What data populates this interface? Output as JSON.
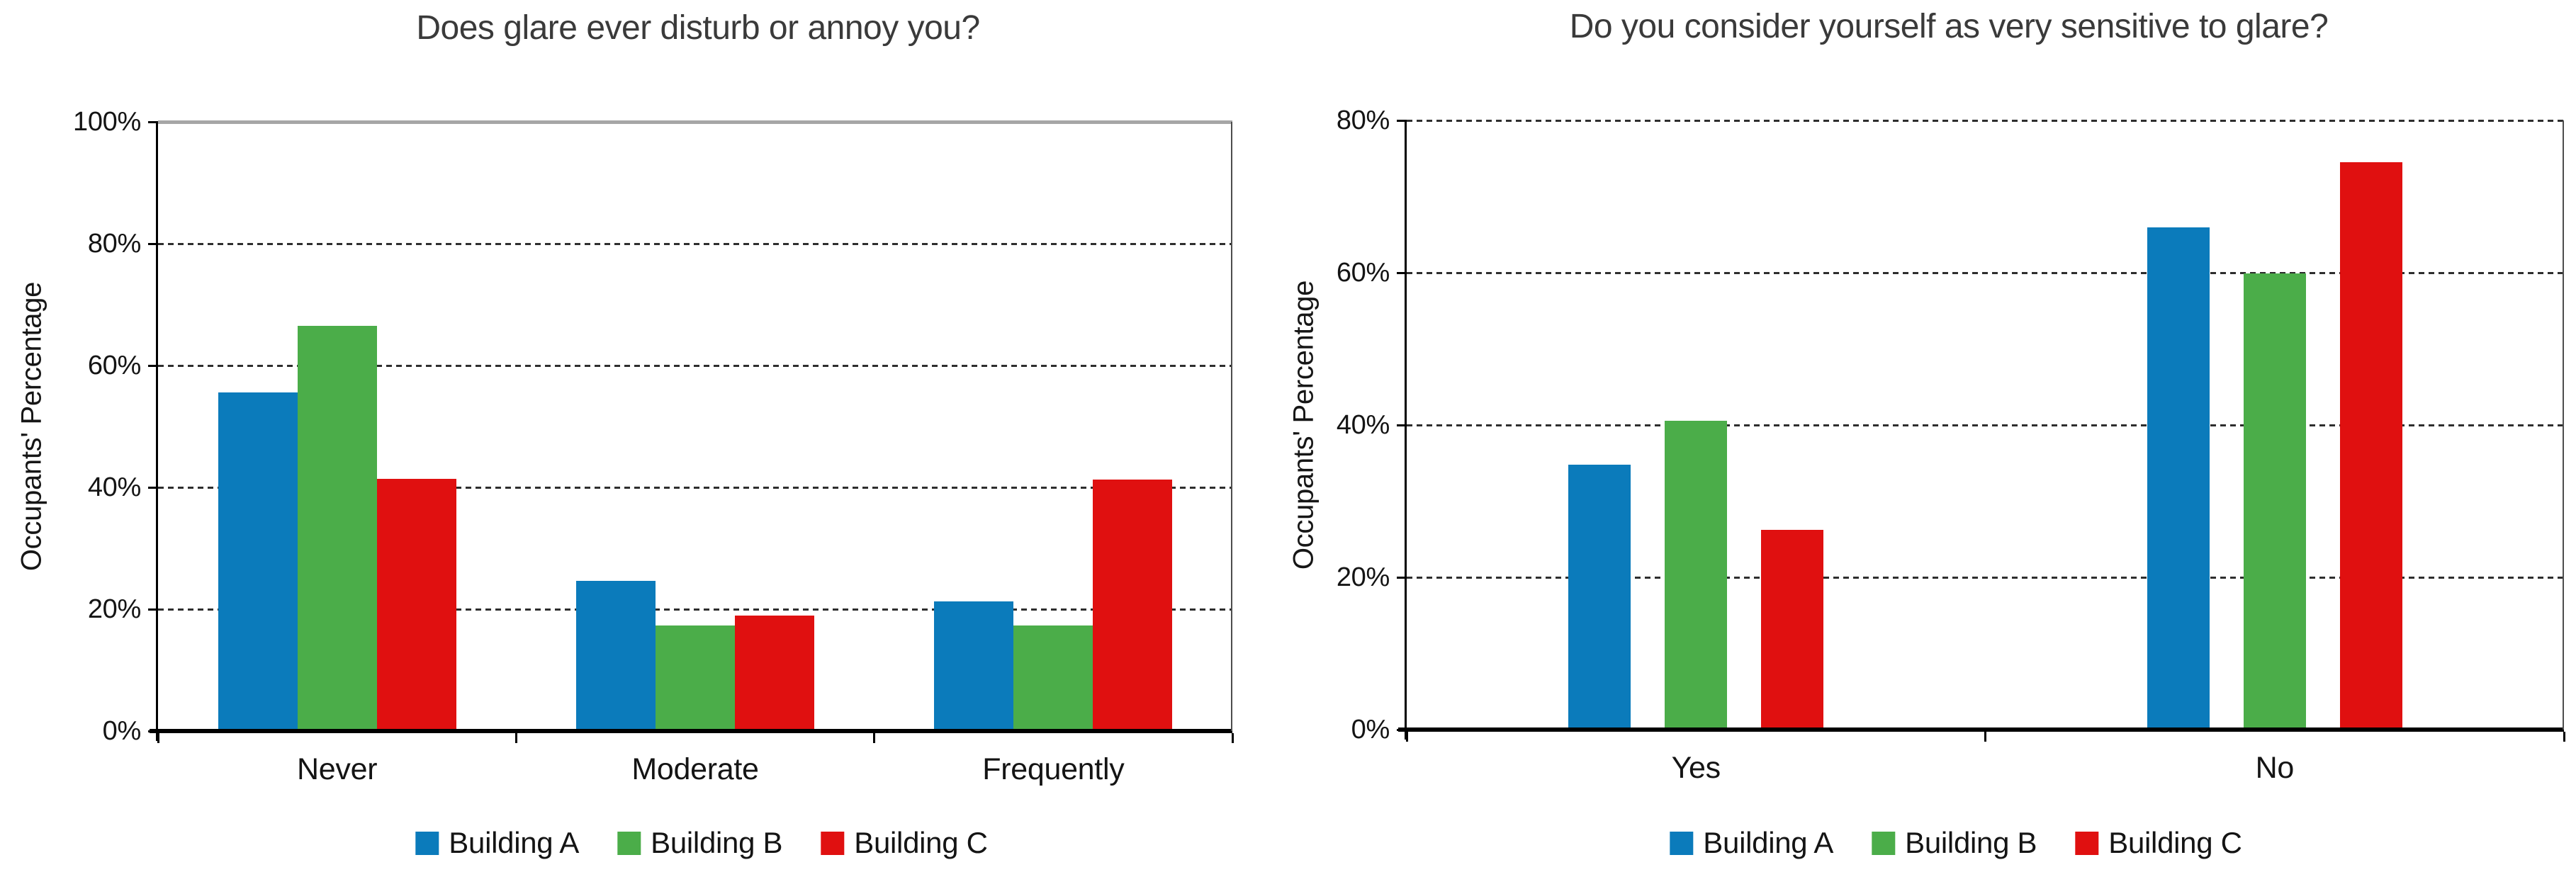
{
  "chart_data": [
    {
      "type": "bar",
      "title": "Does glare ever disturb or annoy you?",
      "xlabel": "",
      "ylabel": "Occupants' Percentage",
      "categories": [
        "Never",
        "Moderate",
        "Frequently"
      ],
      "series": [
        {
          "name": "Building A",
          "color": "#0b7bbb",
          "values": [
            55.2,
            24.3,
            20.9
          ]
        },
        {
          "name": "Building B",
          "color": "#4bad49",
          "values": [
            66.2,
            17.0,
            17.0
          ]
        },
        {
          "name": "Building C",
          "color": "#e01010",
          "values": [
            41.0,
            18.6,
            40.9
          ]
        }
      ],
      "ylim": [
        0,
        100
      ],
      "ytick_step": 20,
      "ytick_labels": [
        "0%",
        "20%",
        "40%",
        "60%",
        "80%",
        "100%"
      ],
      "grid": "horizontal-dotted",
      "legend_position": "bottom"
    },
    {
      "type": "bar",
      "title": "Do you consider yourself as very sensitive to glare?",
      "xlabel": "",
      "ylabel": "Occupants' Percentage",
      "categories": [
        "Yes",
        "No"
      ],
      "series": [
        {
          "name": "Building A",
          "color": "#0b7bbb",
          "values": [
            34.5,
            65.7
          ]
        },
        {
          "name": "Building B",
          "color": "#4bad49",
          "values": [
            40.3,
            59.6
          ]
        },
        {
          "name": "Building C",
          "color": "#e01010",
          "values": [
            26.0,
            74.2
          ]
        }
      ],
      "ylim": [
        0,
        80
      ],
      "ytick_step": 20,
      "ytick_labels": [
        "0%",
        "20%",
        "40%",
        "60%",
        "80%"
      ],
      "grid": "horizontal-dotted",
      "legend_position": "bottom"
    }
  ]
}
